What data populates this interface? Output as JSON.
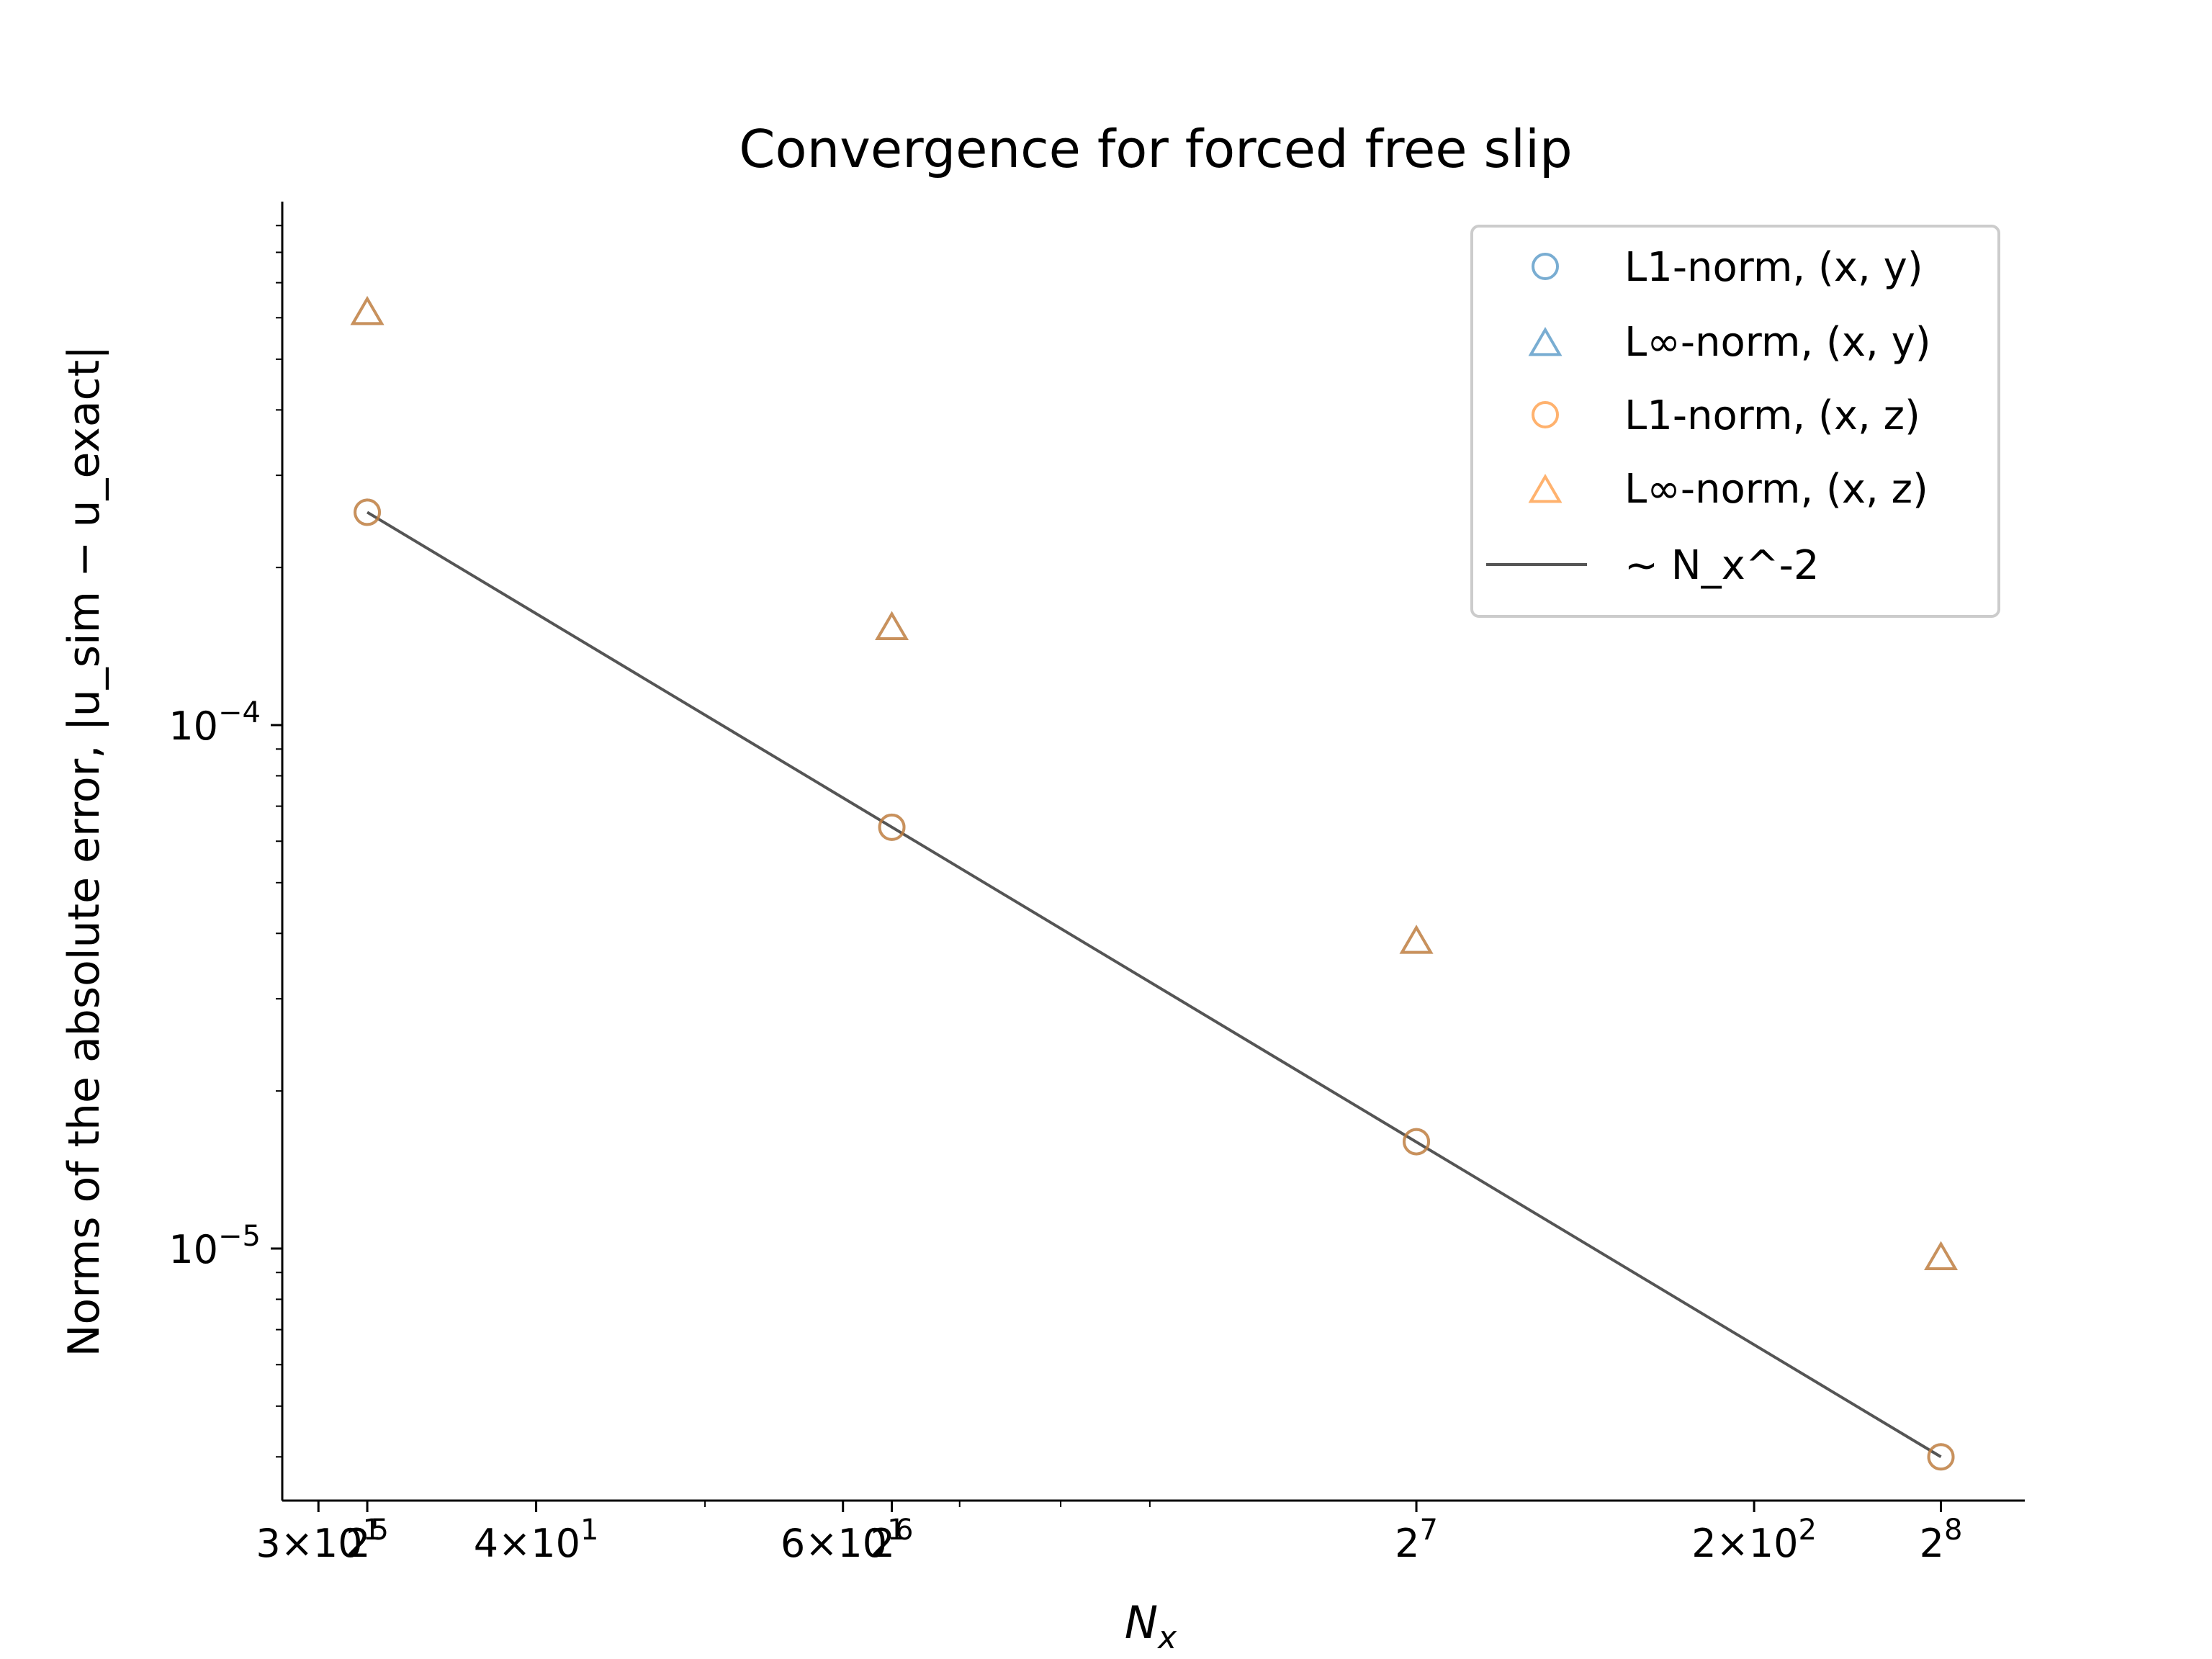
{
  "chart_data": {
    "type": "scatter",
    "title": "Convergence for forced free slip",
    "xlabel_main": "N",
    "xlabel_sub": "x",
    "ylabel": "Norms of the absolute error, |u_sim − u_exact|",
    "x_scale": "log",
    "y_scale": "log",
    "xlim": [
      28.6,
      286
    ],
    "ylim": [
      3.3e-06,
      0.001
    ],
    "x": [
      32,
      64,
      128,
      256
    ],
    "series": [
      {
        "name": "L1-norm, (x, y)",
        "marker": "circle",
        "color": "#1f77b4",
        "values": [
          0.000255,
          6.38e-05,
          1.6e-05,
          4e-06
        ]
      },
      {
        "name": "L∞-norm, (x, y)",
        "marker": "triangle",
        "color": "#1f77b4",
        "values": [
          0.00062,
          0.000155,
          3.9e-05,
          9.7e-06
        ]
      },
      {
        "name": "L1-norm, (x, z)",
        "marker": "circle",
        "color": "#ff7f0e",
        "values": [
          0.000255,
          6.38e-05,
          1.6e-05,
          4e-06
        ]
      },
      {
        "name": "L∞-norm, (x, z)",
        "marker": "triangle",
        "color": "#ff7f0e",
        "values": [
          0.00062,
          0.000155,
          3.9e-05,
          9.7e-06
        ]
      },
      {
        "name": "~ N_x^-2",
        "marker": "line",
        "color": "#555555",
        "x": [
          32,
          256
        ],
        "values": [
          0.000255,
          4e-06
        ]
      }
    ],
    "x_ticks": [
      {
        "value": 30,
        "mant": "3",
        "exp": "1",
        "pow2": false
      },
      {
        "value": 32,
        "base": "2",
        "exp": "5",
        "pow2": true
      },
      {
        "value": 40,
        "mant": "4",
        "exp": "1",
        "pow2": false
      },
      {
        "value": 60,
        "mant": "6",
        "exp": "1",
        "pow2": false
      },
      {
        "value": 64,
        "base": "2",
        "exp": "6",
        "pow2": true
      },
      {
        "value": 128,
        "base": "2",
        "exp": "7",
        "pow2": true
      },
      {
        "value": 200,
        "mant": "2",
        "exp": "2",
        "pow2": false
      },
      {
        "value": 256,
        "base": "2",
        "exp": "8",
        "pow2": true
      }
    ],
    "x_minor_ticks": [
      50,
      70,
      80,
      90
    ],
    "y_ticks": [
      {
        "value": 0.0001,
        "base": "10",
        "exp": "−4"
      },
      {
        "value": 1e-05,
        "base": "10",
        "exp": "−5"
      }
    ],
    "y_minor_ticks": [
      4e-06,
      5e-06,
      6e-06,
      7e-06,
      8e-06,
      9e-06,
      2e-05,
      3e-05,
      4e-05,
      5e-05,
      6e-05,
      7e-05,
      8e-05,
      9e-05,
      0.0002,
      0.0003,
      0.0004,
      0.0005,
      0.0006,
      0.0007,
      0.0008,
      0.0009
    ],
    "legend_position": "top-right",
    "grid": false
  }
}
